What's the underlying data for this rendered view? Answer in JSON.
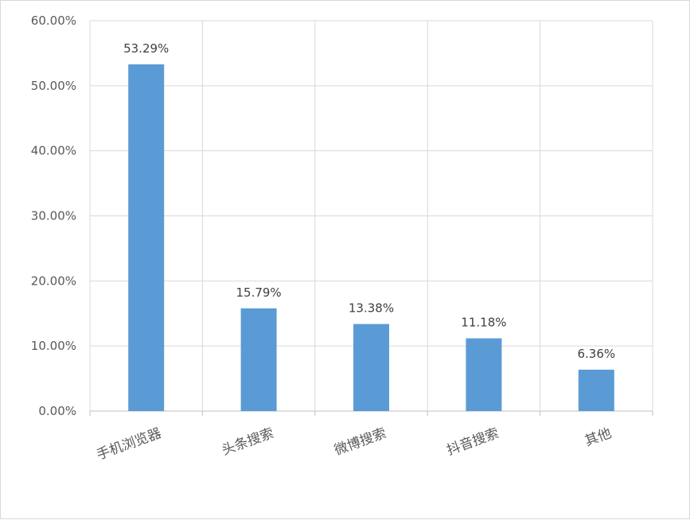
{
  "chart_data": {
    "type": "bar",
    "categories": [
      "手机浏览器",
      "头条搜索",
      "微博搜索",
      "抖音搜索",
      "其他"
    ],
    "values": [
      53.29,
      15.79,
      13.38,
      11.18,
      6.36
    ],
    "data_labels": [
      "53.29%",
      "15.79%",
      "13.38%",
      "11.18%",
      "6.36%"
    ],
    "y_ticks": [
      "0.00%",
      "10.00%",
      "20.00%",
      "30.00%",
      "40.00%",
      "50.00%",
      "60.00%"
    ],
    "ylim": [
      0,
      60
    ],
    "title": "",
    "xlabel": "",
    "ylabel": "",
    "grid": true,
    "legend": "none",
    "colors": {
      "bar": "#5b9bd5",
      "grid": "#d9d9d9",
      "axis": "#bfbfbf"
    }
  }
}
